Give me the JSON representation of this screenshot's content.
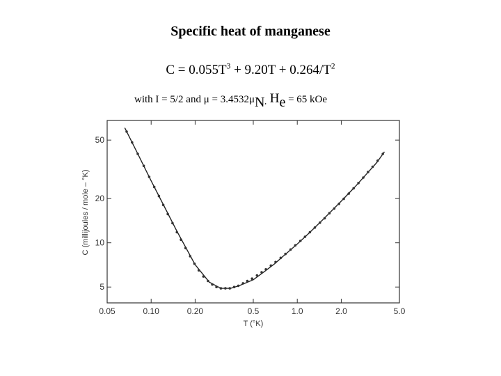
{
  "header": {
    "title": "Specific heat of manganese",
    "eq_prefix": "C = 0.055T",
    "eq_exp1": "3",
    "eq_middle": " + 9.20T + 0.264/T",
    "eq_exp2": "2",
    "params_text": "with I = 5/2 and μ = 3.4532μ",
    "params_sub_n": "N",
    "params_comma": ",",
    "params_h": " H",
    "params_sub_e": "e",
    "params_tail": " = 65 kOe"
  },
  "chart_data": {
    "type": "scatter",
    "title": "",
    "xlabel": "T (°K)",
    "ylabel": "C (millijoules / mole – °K)",
    "x_scale": "log",
    "y_scale": "log",
    "xlim": [
      0.05,
      5.0
    ],
    "ylim": [
      3.9,
      68
    ],
    "x_ticks": [
      0.05,
      0.1,
      0.2,
      0.5,
      1.0,
      2.0,
      5.0
    ],
    "x_tick_labels": [
      "0.05",
      "0.10",
      "0.20",
      "0.5",
      "1.0",
      "2.0",
      "5.0"
    ],
    "y_ticks": [
      5,
      10,
      20,
      50
    ],
    "y_tick_labels": [
      "5",
      "10",
      "20",
      "50"
    ],
    "grid": false,
    "series": [
      {
        "kind": "points",
        "x": [
          0.068,
          0.074,
          0.081,
          0.089,
          0.097,
          0.105,
          0.113,
          0.121,
          0.13,
          0.14,
          0.15,
          0.16,
          0.172,
          0.185,
          0.198,
          0.212,
          0.228,
          0.245,
          0.262,
          0.28,
          0.3,
          0.322,
          0.345,
          0.37,
          0.395,
          0.425,
          0.455,
          0.49,
          0.53,
          0.57,
          0.61,
          0.66,
          0.71,
          0.77,
          0.83,
          0.9,
          0.97,
          1.05,
          1.13,
          1.22,
          1.32,
          1.43,
          1.54,
          1.66,
          1.79,
          1.93,
          2.08,
          2.25,
          2.43,
          2.62,
          2.83,
          3.05,
          3.28,
          3.55,
          3.85
        ],
        "y": [
          57.1,
          48.2,
          40.3,
          33.4,
          28.1,
          24.0,
          20.8,
          18.1,
          15.7,
          13.6,
          11.8,
          10.5,
          9.2,
          8.1,
          7.2,
          6.5,
          5.9,
          5.5,
          5.2,
          5.0,
          4.9,
          4.9,
          4.9,
          5.0,
          5.1,
          5.3,
          5.5,
          5.7,
          6.0,
          6.3,
          6.6,
          7.0,
          7.4,
          7.9,
          8.4,
          9.0,
          9.6,
          10.3,
          11.0,
          11.8,
          12.7,
          13.7,
          14.7,
          15.9,
          17.1,
          18.4,
          19.9,
          21.6,
          23.5,
          25.5,
          27.8,
          30.3,
          32.9,
          36.2,
          40.3
        ]
      },
      {
        "kind": "fit-curve",
        "x": [
          0.066,
          0.08,
          0.1,
          0.125,
          0.15,
          0.2,
          0.25,
          0.3,
          0.35,
          0.4,
          0.5,
          0.6,
          0.7,
          0.8,
          1.0,
          1.2,
          1.5,
          2.0,
          2.5,
          3.0,
          3.5,
          3.95
        ],
        "y": [
          60.6,
          41.3,
          26.4,
          17.1,
          12.0,
          7.1,
          5.4,
          4.9,
          4.9,
          5.1,
          5.6,
          6.4,
          7.2,
          8.1,
          9.8,
          11.6,
          14.4,
          19.2,
          24.2,
          29.6,
          35.2,
          41.6
        ]
      }
    ]
  }
}
